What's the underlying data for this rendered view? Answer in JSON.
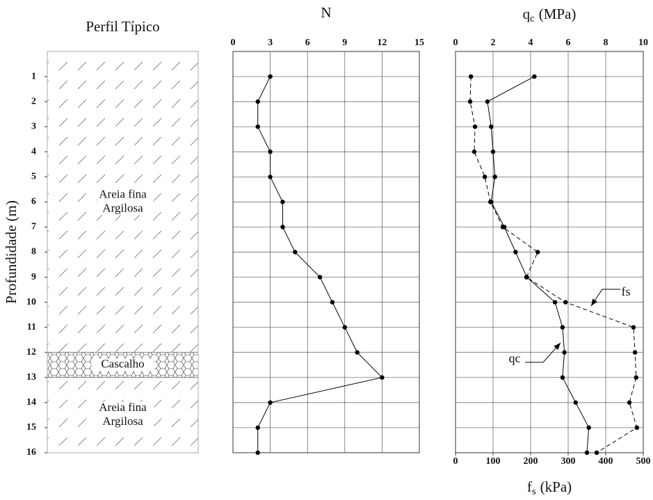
{
  "chart_data": [
    {
      "type": "profile",
      "title": "Perfil Típico",
      "ylabel": "Profundidade (m)",
      "ylim": [
        0,
        16
      ],
      "yticks": [
        1,
        2,
        3,
        4,
        5,
        6,
        7,
        8,
        9,
        10,
        11,
        12,
        13,
        14,
        15,
        16
      ],
      "layers": [
        {
          "lines": [
            "Areia fina",
            "Argilosa"
          ],
          "top": 0,
          "bottom": 12,
          "pattern": "hatch"
        },
        {
          "lines": [
            "Cascalho"
          ],
          "top": 12,
          "bottom": 13,
          "pattern": "gravel"
        },
        {
          "lines": [
            "Areia fina",
            "Argilosa"
          ],
          "top": 13,
          "bottom": 16,
          "pattern": "hatch"
        }
      ]
    },
    {
      "type": "line",
      "title": "N",
      "xlim": [
        0,
        15
      ],
      "xticks": [
        0,
        3,
        6,
        9,
        12,
        15
      ],
      "ylim": [
        0,
        16
      ],
      "grid": true,
      "y": [
        1,
        2,
        3,
        4,
        5,
        6,
        7,
        8,
        9,
        10,
        11,
        12,
        13,
        14,
        15,
        16
      ],
      "series": [
        {
          "color": "#000000",
          "values": [
            3,
            2,
            2,
            3,
            3,
            4,
            4,
            5,
            7,
            8,
            9,
            10,
            12,
            3,
            2,
            2
          ]
        }
      ]
    },
    {
      "type": "line",
      "title": {
        "symbol": "q",
        "subscript": "c",
        "unit": "(MPa)"
      },
      "xlim": [
        0,
        10
      ],
      "xticks": [
        0,
        2,
        4,
        6,
        8,
        10
      ],
      "x2label": {
        "symbol": "f",
        "subscript": "s",
        "unit": "(kPa)"
      },
      "x2lim": [
        0,
        500
      ],
      "x2ticks": [
        0,
        100,
        200,
        300,
        400,
        500
      ],
      "ylim": [
        0,
        16
      ],
      "grid": true,
      "y": [
        1,
        2,
        3,
        4,
        5,
        6,
        7,
        8,
        9,
        10,
        11,
        12,
        13,
        14,
        15,
        16
      ],
      "series": [
        {
          "name": "qc",
          "color": "#000000",
          "dashed": false,
          "values": [
            4.2,
            1.7,
            1.9,
            2.0,
            2.1,
            1.9,
            2.6,
            3.2,
            3.8,
            5.3,
            5.7,
            5.8,
            5.7,
            6.4,
            7.1,
            7.0
          ]
        },
        {
          "name": "fs",
          "color": "#000000",
          "dashed": true,
          "axis": "x2",
          "values": [
            41,
            39,
            52,
            50,
            78,
            93,
            126,
            219,
            189,
            293,
            474,
            478,
            481,
            463,
            483,
            376
          ]
        }
      ]
    }
  ]
}
